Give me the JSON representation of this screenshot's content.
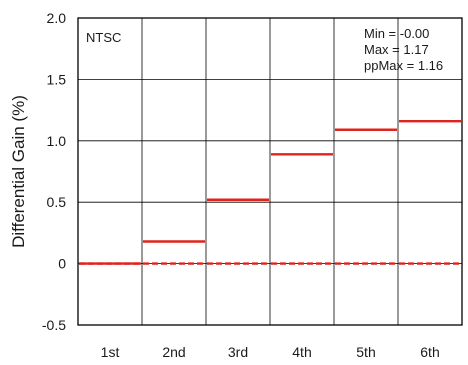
{
  "chart_data": {
    "type": "line",
    "ylabel": "Differential Gain (%)",
    "categories": [
      "1st",
      "2nd",
      "3rd",
      "4th",
      "5th",
      "6th"
    ],
    "y_ticks": [
      "2.0",
      "1.5",
      "1.0",
      "0.5",
      "0",
      "-0.5"
    ],
    "ylim": [
      -0.5,
      2.0
    ],
    "grid": true,
    "series": [
      {
        "values": [
          0.0,
          0.18,
          0.52,
          0.89,
          1.09,
          1.16
        ],
        "color": "#e0231c",
        "style": "solid"
      },
      {
        "values": [
          0.0,
          0.0,
          0.0,
          0.0,
          0.0,
          0.0
        ],
        "color": "#e0231c",
        "style": "dashed"
      }
    ],
    "annotations": {
      "standard": "NTSC",
      "stats": [
        "Min = -0.00",
        "Max = 1.17",
        "ppMax = 1.16"
      ]
    }
  }
}
